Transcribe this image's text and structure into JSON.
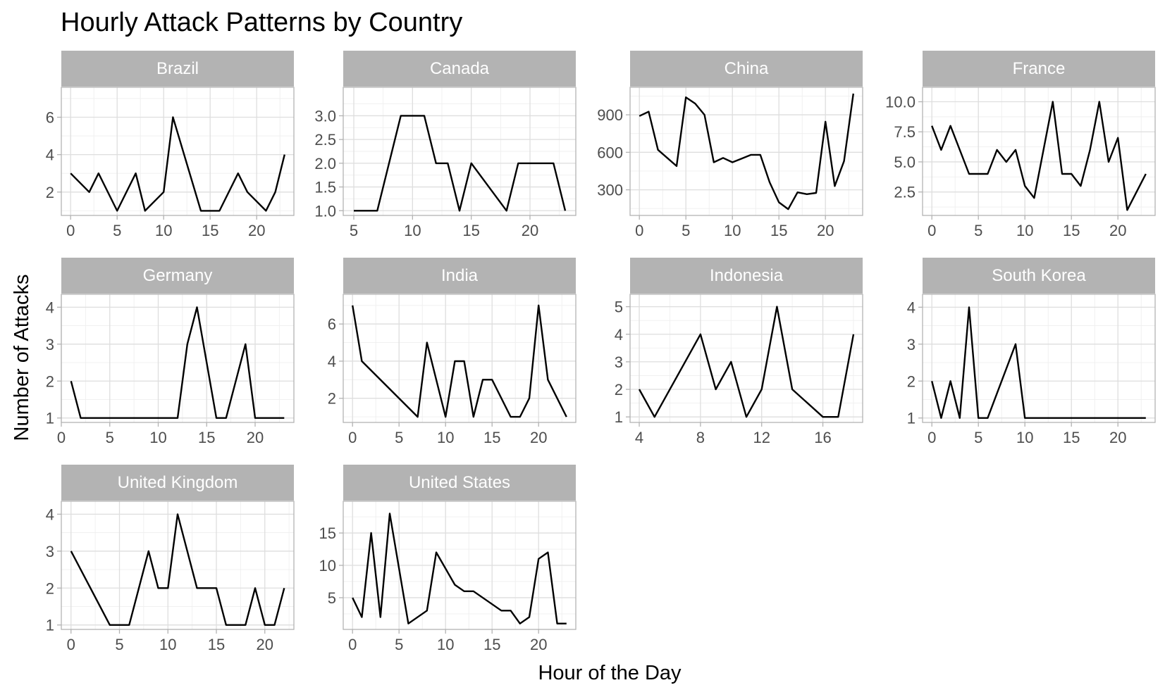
{
  "chart_data": {
    "type": "line",
    "title": "Hourly Attack Patterns by Country",
    "xlabel": "Hour of the Day",
    "ylabel": "Number of Attacks",
    "grid": true,
    "facets": [
      {
        "name": "Brazil",
        "x": [
          0,
          2,
          3,
          5,
          7,
          8,
          10,
          11,
          14,
          15,
          16,
          18,
          19,
          21,
          22,
          23
        ],
        "y": [
          3,
          2,
          3,
          1,
          3,
          1,
          2,
          6,
          1,
          1,
          1,
          3,
          2,
          1,
          2,
          4
        ],
        "xlim": [
          -1,
          24
        ],
        "xticks": [
          0,
          5,
          10,
          15,
          20
        ],
        "ylim": [
          0.75,
          7.6
        ],
        "yticks": [
          2,
          4,
          6
        ]
      },
      {
        "name": "Canada",
        "x": [
          5,
          7,
          9,
          11,
          12,
          13,
          14,
          15,
          18,
          19,
          22,
          23
        ],
        "y": [
          1,
          1,
          3,
          3,
          2,
          2,
          1,
          2,
          1,
          2,
          2,
          1
        ],
        "xlim": [
          4.1,
          23.9
        ],
        "xticks": [
          5,
          10,
          15,
          20
        ],
        "ylim": [
          0.9,
          3.6
        ],
        "yticks": [
          1.0,
          1.5,
          2.0,
          2.5,
          3.0
        ],
        "ytick_labels": [
          "1.0",
          "1.5",
          "2.0",
          "2.5",
          "3.0"
        ]
      },
      {
        "name": "China",
        "x": [
          0,
          1,
          2,
          4,
          5,
          6,
          7,
          8,
          9,
          10,
          11,
          12,
          13,
          14,
          15,
          16,
          17,
          18,
          19,
          20,
          21,
          22,
          23
        ],
        "y": [
          890,
          925,
          620,
          490,
          1040,
          990,
          900,
          520,
          555,
          520,
          550,
          580,
          580,
          360,
          200,
          145,
          280,
          265,
          275,
          845,
          330,
          530,
          1070
        ],
        "xlim": [
          -1,
          24
        ],
        "xticks": [
          0,
          5,
          10,
          15,
          20
        ],
        "ylim": [
          95,
          1120
        ],
        "yticks": [
          300,
          600,
          900
        ]
      },
      {
        "name": "France",
        "x": [
          0,
          1,
          2,
          4,
          5,
          6,
          7,
          8,
          9,
          10,
          11,
          13,
          14,
          15,
          16,
          17,
          18,
          19,
          20,
          21,
          23
        ],
        "y": [
          8,
          6,
          8,
          4,
          4,
          4,
          6,
          5,
          6,
          3,
          2,
          10,
          4,
          4,
          3,
          6,
          10,
          5,
          7,
          1,
          4
        ],
        "xlim": [
          -1,
          24
        ],
        "xticks": [
          0,
          5,
          10,
          15,
          20
        ],
        "ylim": [
          0.55,
          11.2
        ],
        "yticks": [
          2.5,
          5.0,
          7.5,
          10.0
        ],
        "ytick_labels": [
          "2.5",
          "5.0",
          "7.5",
          "10.0"
        ]
      },
      {
        "name": "Germany",
        "x": [
          1,
          2,
          12,
          13,
          14,
          16,
          17,
          19,
          20,
          23
        ],
        "y": [
          2,
          1,
          1,
          3,
          4,
          1,
          1,
          3,
          1,
          1
        ],
        "xlim": [
          0,
          24
        ],
        "xticks": [
          0,
          5,
          10,
          15,
          20
        ],
        "ylim": [
          0.88,
          4.35
        ],
        "yticks": [
          1,
          2,
          3,
          4
        ]
      },
      {
        "name": "India",
        "x": [
          0,
          1,
          7,
          8,
          10,
          11,
          12,
          13,
          14,
          15,
          17,
          18,
          19,
          20,
          21,
          23
        ],
        "y": [
          7,
          4,
          1,
          5,
          1,
          4,
          4,
          1,
          3,
          3,
          1,
          1,
          2,
          7,
          3,
          1
        ],
        "xlim": [
          -1,
          24
        ],
        "xticks": [
          0,
          5,
          10,
          15,
          20
        ],
        "ylim": [
          0.7,
          7.6
        ],
        "yticks": [
          2,
          4,
          6
        ]
      },
      {
        "name": "Indonesia",
        "x": [
          4,
          5,
          8,
          9,
          10,
          11,
          12,
          13,
          14,
          16,
          17,
          18
        ],
        "y": [
          2,
          1,
          4,
          2,
          3,
          1,
          2,
          5,
          2,
          1,
          1,
          4
        ],
        "xlim": [
          3.4,
          18.6
        ],
        "xticks": [
          4,
          8,
          12,
          16
        ],
        "ylim": [
          0.8,
          5.45
        ],
        "yticks": [
          1,
          2,
          3,
          4,
          5
        ]
      },
      {
        "name": "South Korea",
        "x": [
          0,
          1,
          2,
          3,
          4,
          5,
          6,
          9,
          10,
          23
        ],
        "y": [
          2,
          1,
          2,
          1,
          4,
          1,
          1,
          3,
          1,
          1
        ],
        "xlim": [
          -1,
          24
        ],
        "xticks": [
          0,
          5,
          10,
          15,
          20
        ],
        "ylim": [
          0.88,
          4.35
        ],
        "yticks": [
          1,
          2,
          3,
          4
        ]
      },
      {
        "name": "United Kingdom",
        "x": [
          0,
          4,
          6,
          8,
          9,
          10,
          11,
          13,
          15,
          16,
          18,
          19,
          20,
          21,
          22
        ],
        "y": [
          3,
          1,
          1,
          3,
          2,
          2,
          4,
          2,
          2,
          1,
          1,
          2,
          1,
          1,
          2
        ],
        "xlim": [
          -1,
          23
        ],
        "xticks": [
          0,
          5,
          10,
          15,
          20
        ],
        "ylim": [
          0.88,
          4.35
        ],
        "yticks": [
          1,
          2,
          3,
          4
        ]
      },
      {
        "name": "United States",
        "x": [
          0,
          1,
          2,
          3,
          4,
          6,
          8,
          9,
          11,
          12,
          13,
          16,
          17,
          18,
          19,
          20,
          21,
          22,
          23
        ],
        "y": [
          5,
          2,
          15,
          2,
          18,
          1,
          3,
          12,
          7,
          6,
          6,
          3,
          3,
          1,
          2,
          11,
          12,
          1,
          1
        ],
        "xlim": [
          -1,
          24
        ],
        "xticks": [
          0,
          5,
          10,
          15,
          20
        ],
        "ylim": [
          0.1,
          19.9
        ],
        "yticks": [
          5,
          10,
          15
        ]
      }
    ]
  }
}
